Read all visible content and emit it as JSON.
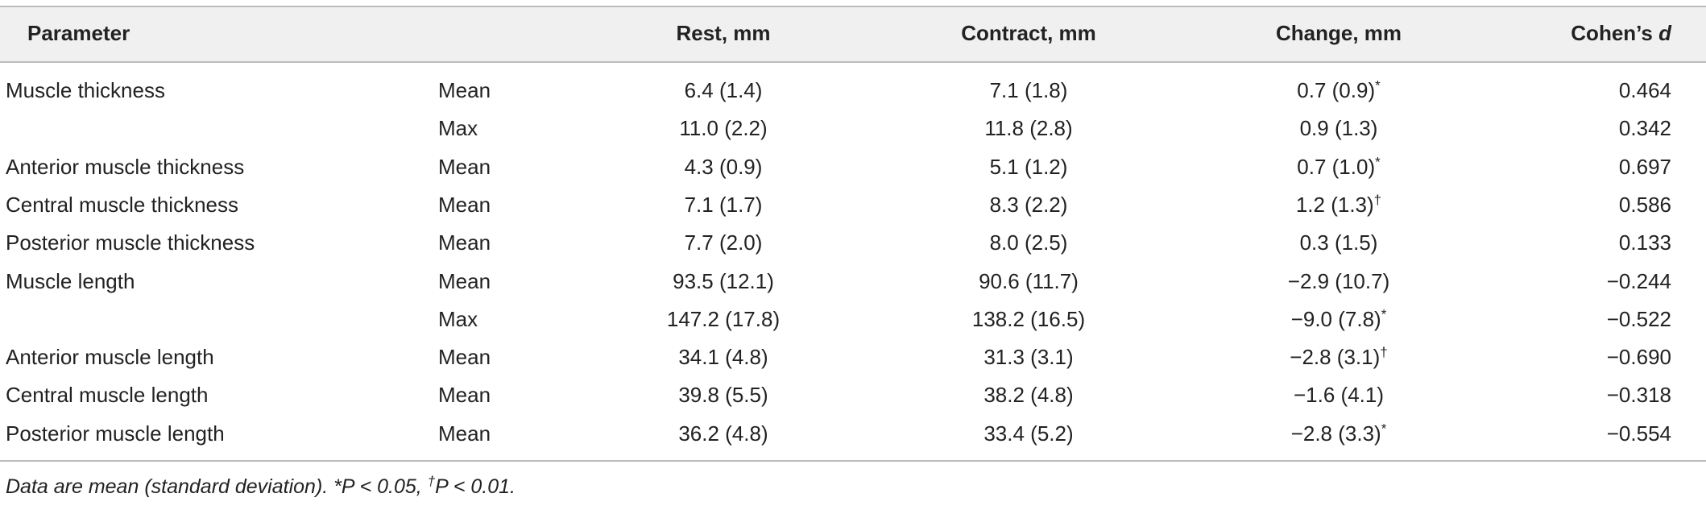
{
  "table": {
    "header": [
      {
        "text": "Parameter"
      },
      {
        "text": ""
      },
      {
        "text": "Rest, mm"
      },
      {
        "text": "Contract, mm"
      },
      {
        "text": "Change, mm"
      },
      {
        "text": "Cohen’s ",
        "italic": "d"
      }
    ],
    "rows": [
      [
        {
          "text": "Muscle thickness"
        },
        {
          "text": "Mean"
        },
        {
          "text": "6.4 (1.4)"
        },
        {
          "text": "7.1 (1.8)"
        },
        {
          "text": "0.7 (0.9)",
          "sup": "*"
        },
        {
          "text": "0.464"
        }
      ],
      [
        {
          "text": ""
        },
        {
          "text": "Max"
        },
        {
          "text": "11.0 (2.2)"
        },
        {
          "text": "11.8 (2.8)"
        },
        {
          "text": "0.9 (1.3)"
        },
        {
          "text": "0.342"
        }
      ],
      [
        {
          "text": "Anterior muscle thickness"
        },
        {
          "text": "Mean"
        },
        {
          "text": "4.3 (0.9)"
        },
        {
          "text": "5.1 (1.2)"
        },
        {
          "text": "0.7 (1.0)",
          "sup": "*"
        },
        {
          "text": "0.697"
        }
      ],
      [
        {
          "text": "Central muscle thickness"
        },
        {
          "text": "Mean"
        },
        {
          "text": "7.1 (1.7)"
        },
        {
          "text": "8.3 (2.2)"
        },
        {
          "text": "1.2 (1.3)",
          "sup": "†"
        },
        {
          "text": "0.586"
        }
      ],
      [
        {
          "text": "Posterior muscle thickness"
        },
        {
          "text": "Mean"
        },
        {
          "text": "7.7 (2.0)"
        },
        {
          "text": "8.0 (2.5)"
        },
        {
          "text": "0.3 (1.5)"
        },
        {
          "text": "0.133"
        }
      ],
      [
        {
          "text": "Muscle length"
        },
        {
          "text": "Mean"
        },
        {
          "text": "93.5 (12.1)"
        },
        {
          "text": "90.6 (11.7)"
        },
        {
          "text": "−2.9 (10.7)"
        },
        {
          "text": "−0.244"
        }
      ],
      [
        {
          "text": ""
        },
        {
          "text": "Max"
        },
        {
          "text": "147.2 (17.8)"
        },
        {
          "text": "138.2 (16.5)"
        },
        {
          "text": "−9.0 (7.8)",
          "sup": "*"
        },
        {
          "text": "−0.522"
        }
      ],
      [
        {
          "text": "Anterior muscle length"
        },
        {
          "text": "Mean"
        },
        {
          "text": "34.1 (4.8)"
        },
        {
          "text": "31.3 (3.1)"
        },
        {
          "text": "−2.8 (3.1)",
          "sup": "†"
        },
        {
          "text": "−0.690"
        }
      ],
      [
        {
          "text": "Central muscle length"
        },
        {
          "text": "Mean"
        },
        {
          "text": "39.8 (5.5)"
        },
        {
          "text": "38.2 (4.8)"
        },
        {
          "text": "−1.6 (4.1)"
        },
        {
          "text": "−0.318"
        }
      ],
      [
        {
          "text": "Posterior muscle length"
        },
        {
          "text": "Mean"
        },
        {
          "text": "36.2 (4.8)"
        },
        {
          "text": "33.4 (5.2)"
        },
        {
          "text": "−2.8 (3.3)",
          "sup": "*"
        },
        {
          "text": "−0.554"
        }
      ]
    ]
  },
  "footnote": [
    {
      "text": "Data are mean (standard deviation). *P < 0.05, "
    },
    {
      "text": "†",
      "sup": true
    },
    {
      "text": "P < 0.01."
    }
  ]
}
